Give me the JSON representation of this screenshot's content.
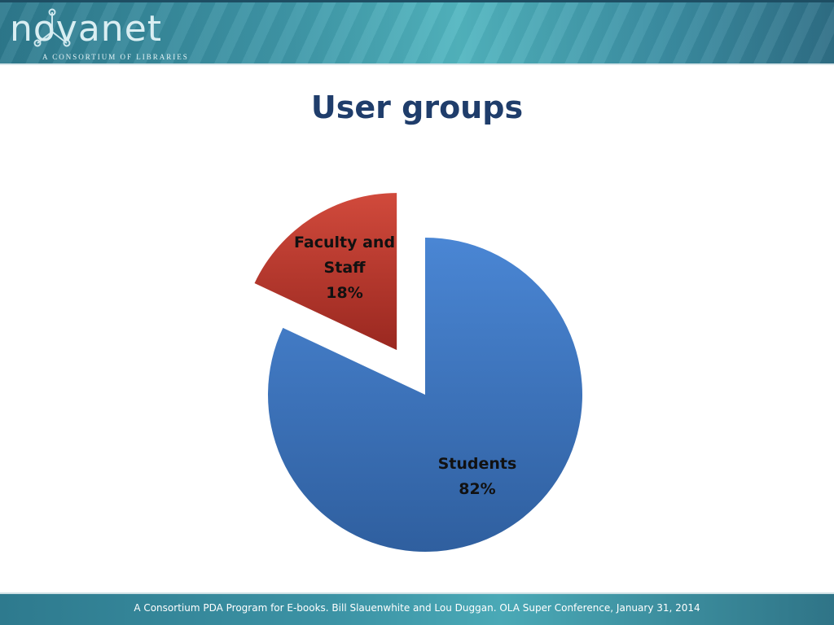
{
  "header": {
    "logo_text": "novanet",
    "logo_tagline": "A CONSORTIUM OF LIBRARIES"
  },
  "slide": {
    "title": "User groups"
  },
  "chart_data": {
    "type": "pie",
    "title": "User groups",
    "exploded": true,
    "slices": [
      {
        "name": "Students",
        "value": 82,
        "label": "82%",
        "color": "#3b78c4"
      },
      {
        "name": "Faculty and Staff",
        "value": 18,
        "label": "18%",
        "color": "#c0392b"
      }
    ]
  },
  "footer": {
    "text": "A Consortium PDA Program for E-books. Bill Slauenwhite and Lou Duggan.  OLA Super Conference, January 31, 2014"
  }
}
